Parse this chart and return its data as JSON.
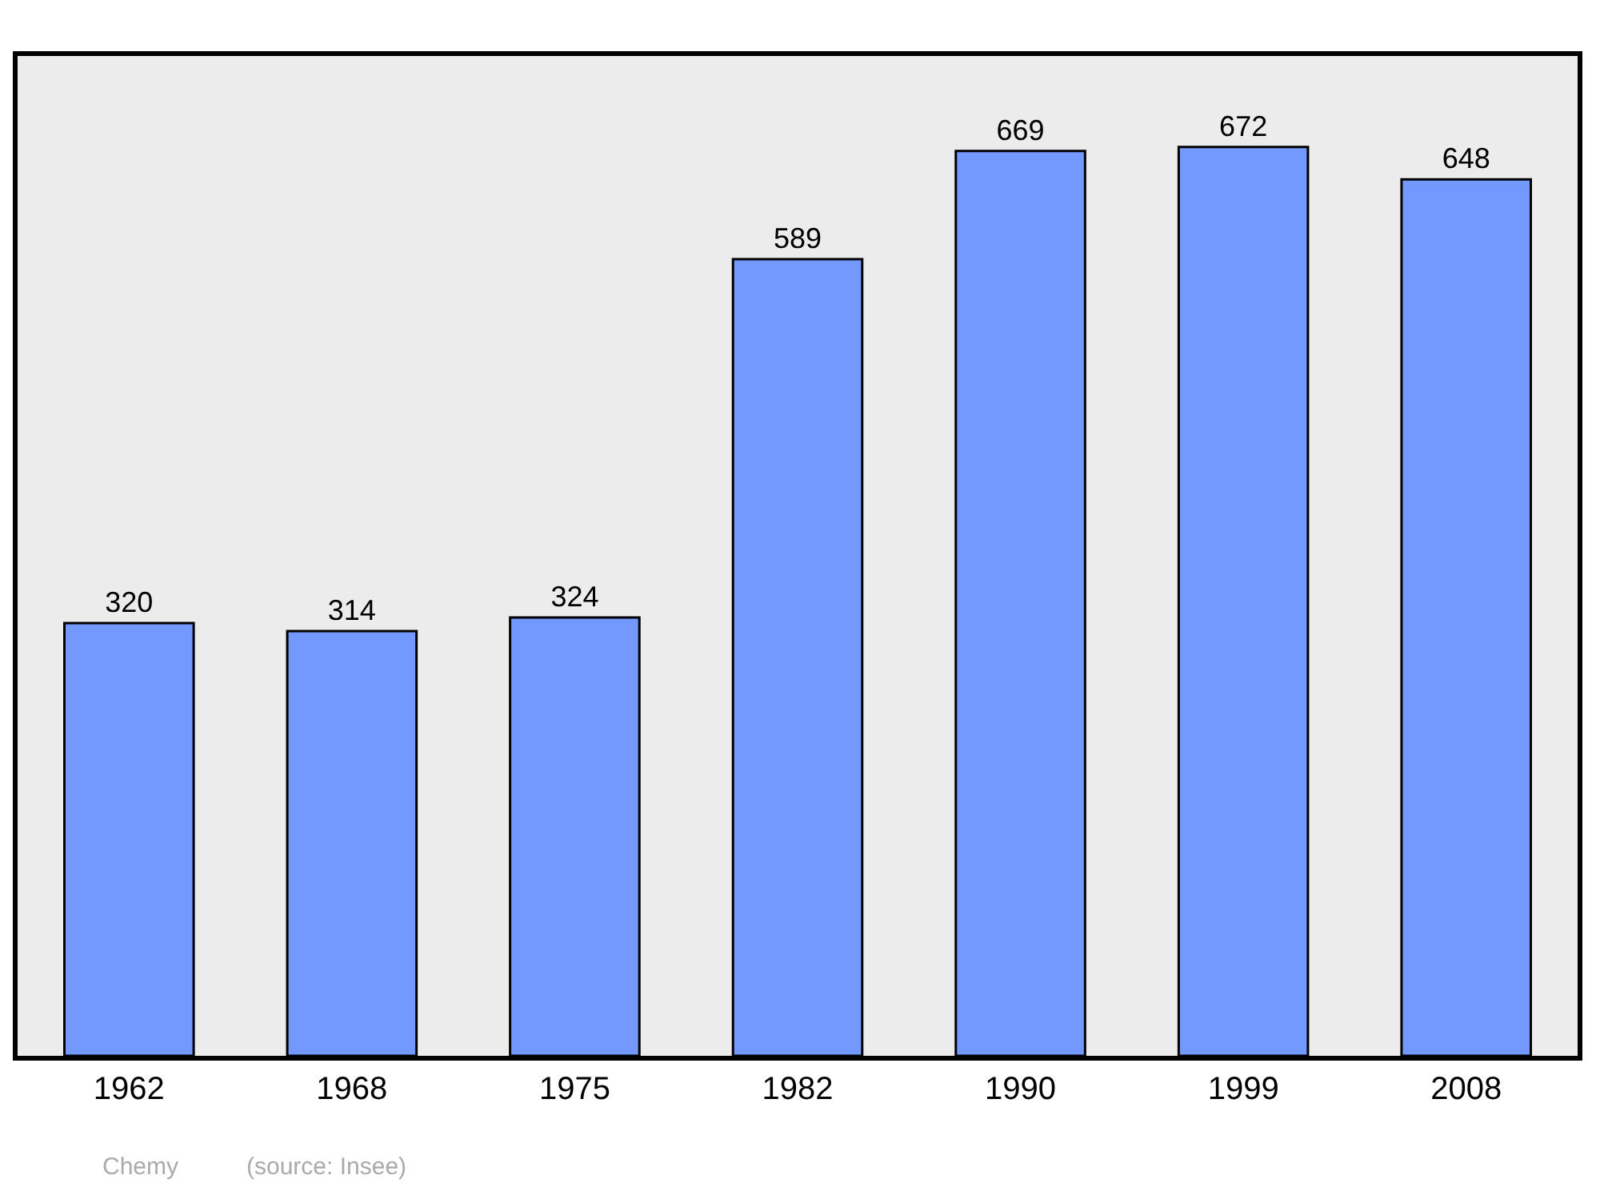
{
  "chart_data": {
    "type": "bar",
    "categories": [
      "1962",
      "1968",
      "1975",
      "1982",
      "1990",
      "1999",
      "2008"
    ],
    "values": [
      320,
      314,
      324,
      589,
      669,
      672,
      648
    ],
    "color": "#7399ff",
    "data_labels": true,
    "grid": false,
    "legend": false,
    "tick_labels": "x",
    "annotations": [
      "Chemy",
      "(source: Insee)"
    ]
  }
}
